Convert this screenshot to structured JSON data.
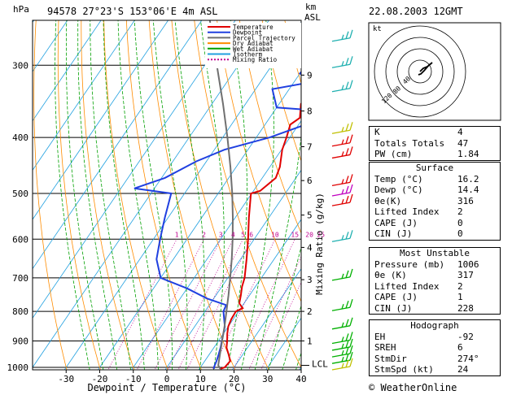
{
  "header": {
    "unit_left": "hPa",
    "station": "94578 27°23'S 153°06'E  4m ASL",
    "unit_right_km": "km",
    "unit_right_asl": "ASL",
    "datetime": "22.08.2003 12GMT",
    "copyright": "© WeatherOnline"
  },
  "legend": [
    {
      "label": "Temperature",
      "color": "#e00000",
      "dash": ""
    },
    {
      "label": "Dewpoint",
      "color": "#2040e0",
      "dash": ""
    },
    {
      "label": "Parcel Trajectory",
      "color": "#707070",
      "dash": ""
    },
    {
      "label": "Dry Adiabat",
      "color": "#ff8c00",
      "dash": ""
    },
    {
      "label": "Wet Adiabat",
      "color": "#00a000",
      "dash": ""
    },
    {
      "label": "Isotherm",
      "color": "#20a0e0",
      "dash": ""
    },
    {
      "label": "Mixing Ratio",
      "color": "#c00090",
      "dash": "2,2"
    }
  ],
  "hodograph": {
    "unit": "kt",
    "ring_labels": [
      "40",
      "80",
      "120"
    ]
  },
  "indices": {
    "k": {
      "label": "K",
      "value": "4"
    },
    "tt": {
      "label": "Totals Totals",
      "value": "47"
    },
    "pw": {
      "label": "PW (cm)",
      "value": "1.84"
    },
    "surface": {
      "title": "Surface",
      "rows": [
        {
          "label": "Temp (°C)",
          "value": "16.2"
        },
        {
          "label": "Dewp (°C)",
          "value": "14.4"
        },
        {
          "label": "θe(K)",
          "value": "316"
        },
        {
          "label": "Lifted Index",
          "value": "2"
        },
        {
          "label": "CAPE (J)",
          "value": "0"
        },
        {
          "label": "CIN (J)",
          "value": "0"
        }
      ]
    },
    "unstable": {
      "title": "Most Unstable",
      "rows": [
        {
          "label": "Pressure (mb)",
          "value": "1006"
        },
        {
          "label": "θe (K)",
          "value": "317"
        },
        {
          "label": "Lifted Index",
          "value": "2"
        },
        {
          "label": "CAPE (J)",
          "value": "1"
        },
        {
          "label": "CIN (J)",
          "value": "228"
        }
      ]
    },
    "hodo": {
      "title": "Hodograph",
      "rows": [
        {
          "label": "EH",
          "value": "-92"
        },
        {
          "label": "SREH",
          "value": "6"
        },
        {
          "label": "StmDir",
          "value": "274°"
        },
        {
          "label": "StmSpd (kt)",
          "value": "24"
        }
      ]
    }
  },
  "chart_data": {
    "type": "line",
    "xlabel": "Dewpoint / Temperature (°C)",
    "ylabel_right": "Mixing Ratio (g/kg)",
    "xlim": [
      -40,
      40
    ],
    "ylim_hpa": [
      1000,
      250
    ],
    "x_ticks": [
      "-30",
      "-20",
      "-10",
      "0",
      "10",
      "20",
      "30",
      "40"
    ],
    "x_tick_values": [
      -30,
      -20,
      -10,
      0,
      10,
      20,
      30,
      40
    ],
    "p_ticks": [
      "300",
      "400",
      "500",
      "600",
      "700",
      "800",
      "900",
      "1000"
    ],
    "p_tick_values": [
      300,
      400,
      500,
      600,
      700,
      800,
      900,
      1000
    ],
    "km_ticks": [
      {
        "km": "1",
        "p": 900
      },
      {
        "km": "2",
        "p": 800
      },
      {
        "km": "3",
        "p": 705
      },
      {
        "km": "4",
        "p": 620
      },
      {
        "km": "5",
        "p": 545
      },
      {
        "km": "6",
        "p": 475
      },
      {
        "km": "7",
        "p": 415
      },
      {
        "km": "8",
        "p": 360
      },
      {
        "km": "9",
        "p": 312
      }
    ],
    "lcl_label": "LCL",
    "lcl_p": 992,
    "mixing_ratio_labels": [
      "1",
      "2",
      "3",
      "4",
      "5",
      "6",
      "10",
      "15",
      "20",
      "25"
    ],
    "mixing_ratio_values": [
      1,
      2,
      3,
      4,
      5,
      6,
      10,
      15,
      20,
      25
    ],
    "mixing_ratio_label_p": 600,
    "series": [
      {
        "name": "Temperature",
        "color": "#e00000",
        "p": [
          1006,
          1000,
          975,
          950,
          925,
          900,
          875,
          850,
          825,
          800,
          790,
          775,
          750,
          725,
          700,
          650,
          600,
          550,
          505,
          500,
          495,
          470,
          450,
          420,
          400,
          380,
          370,
          350,
          320,
          300,
          280,
          250
        ],
        "t": [
          16.2,
          17.2,
          17.6,
          15.8,
          13.8,
          12.6,
          11.2,
          10.0,
          9.4,
          9.2,
          10.6,
          8.6,
          7.4,
          6.0,
          5.0,
          1.8,
          -1.8,
          -6.0,
          -9.8,
          -10.2,
          -8.0,
          -6.0,
          -7.0,
          -9.8,
          -11.0,
          -12.5,
          -11.0,
          -13.5,
          -13.0,
          -15.0,
          -18.0,
          -22.0
        ]
      },
      {
        "name": "Dewpoint",
        "color": "#2040e0",
        "p": [
          1006,
          1000,
          975,
          950,
          925,
          900,
          850,
          800,
          780,
          760,
          730,
          700,
          650,
          600,
          550,
          500,
          490,
          470,
          440,
          420,
          400,
          380,
          360,
          355,
          330,
          320,
          310,
          280,
          250
        ],
        "t": [
          14.4,
          14.0,
          13.5,
          12.8,
          12.0,
          11.0,
          9.0,
          5.5,
          5.0,
          -2.0,
          -10.0,
          -20.0,
          -25.0,
          -28.0,
          -31.0,
          -34.0,
          -46.0,
          -39.0,
          -33.0,
          -27.0,
          -16.0,
          -8.0,
          -5.0,
          -20.0,
          -25.0,
          -14.0,
          -20.0,
          -18.0,
          -15.0
        ]
      },
      {
        "name": "Parcel Trajectory",
        "color": "#707070",
        "p": [
          1006,
          992,
          950,
          900,
          850,
          800,
          750,
          700,
          650,
          600,
          550,
          500,
          450,
          400,
          350,
          300,
          250
        ],
        "t": [
          16.2,
          14.9,
          13.2,
          11.1,
          8.9,
          6.4,
          3.7,
          0.7,
          -2.6,
          -6.4,
          -10.8,
          -15.8,
          -21.7,
          -28.6,
          -36.7,
          -46.4,
          -57.8
        ]
      }
    ],
    "wind_barbs": {
      "color_by_level": "multi",
      "p": [
        270,
        300,
        330,
        390,
        410,
        430,
        480,
        500,
        520,
        600,
        700,
        790,
        850,
        900,
        925,
        950,
        975,
        1000
      ],
      "colors": [
        "#20b0b0",
        "#20b0b0",
        "#20b0b0",
        "#c0c000",
        "#e00000",
        "#e00000",
        "#e00000",
        "#c000c0",
        "#e00000",
        "#20b0b0",
        "#00b000",
        "#00b000",
        "#00b000",
        "#00b000",
        "#00b000",
        "#00b000",
        "#00b000",
        "#c0c000"
      ]
    }
  }
}
